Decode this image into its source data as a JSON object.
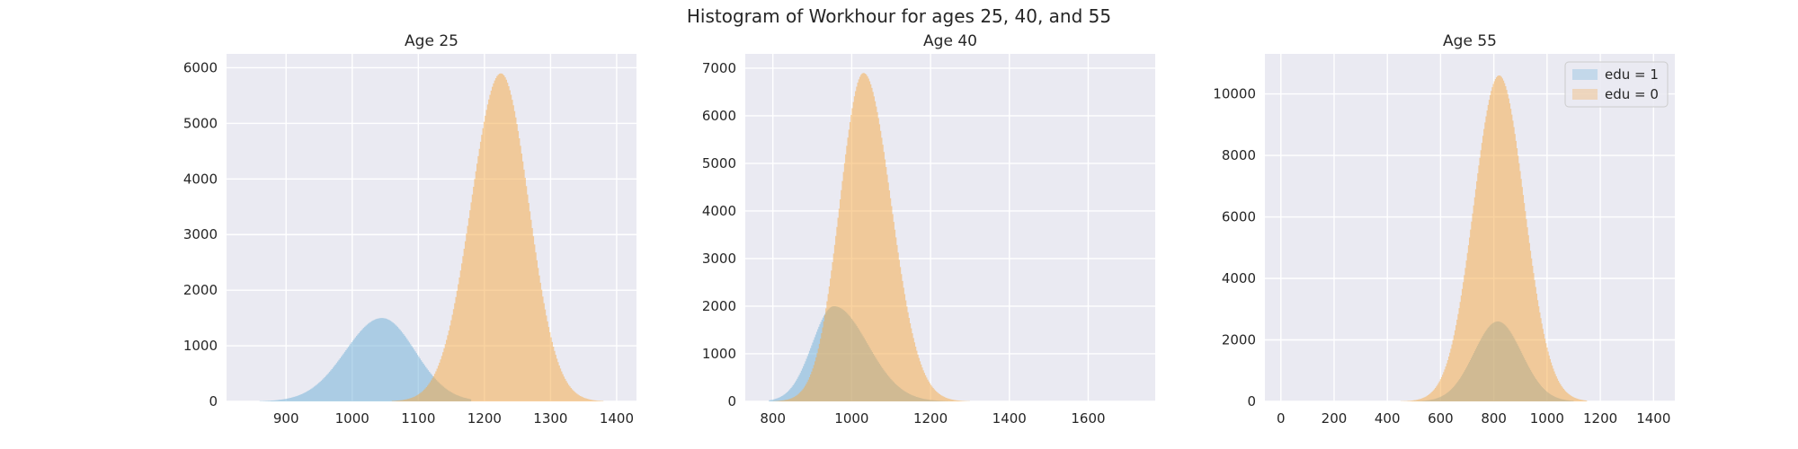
{
  "suptitle": "Histogram of Workhour for ages 25, 40, and 55",
  "colors": {
    "edu1": "#6baed6",
    "edu0": "#f5a742",
    "panel_bg": "#eaeaf2",
    "grid": "#ffffff",
    "text": "#262626"
  },
  "legend": {
    "placement": "upper right",
    "panel": 2
  },
  "chart_data": [
    {
      "type": "histogram",
      "title": "Age 25",
      "xlim": [
        810,
        1430
      ],
      "ylim": [
        0,
        6250
      ],
      "xticks": [
        900,
        1000,
        1100,
        1200,
        1300,
        1400
      ],
      "yticks": [
        0,
        1000,
        2000,
        3000,
        4000,
        5000,
        6000
      ],
      "grid": true,
      "series": [
        {
          "name": "edu = 1",
          "color": "edu1",
          "x_range": [
            860,
            1180
          ],
          "peak_x": 1045,
          "peak_y": 1500,
          "sigma_left": 55,
          "sigma_right": 50
        },
        {
          "name": "edu = 0",
          "color": "edu0",
          "x_range": [
            1060,
            1380
          ],
          "peak_x": 1225,
          "peak_y": 5900,
          "sigma_left": 45,
          "sigma_right": 42
        }
      ]
    },
    {
      "type": "histogram",
      "title": "Age 40",
      "xlim": [
        730,
        1770
      ],
      "ylim": [
        0,
        7300
      ],
      "xticks": [
        800,
        1000,
        1200,
        1400,
        1600
      ],
      "yticks": [
        0,
        1000,
        2000,
        3000,
        4000,
        5000,
        6000,
        7000
      ],
      "grid": true,
      "series": [
        {
          "name": "edu = 1",
          "color": "edu1",
          "x_range": [
            790,
            1260
          ],
          "peak_x": 955,
          "peak_y": 2000,
          "sigma_left": 55,
          "sigma_right": 85
        },
        {
          "name": "edu = 0",
          "color": "edu0",
          "x_range": [
            800,
            1300
          ],
          "peak_x": 1030,
          "peak_y": 6900,
          "sigma_left": 60,
          "sigma_right": 70
        }
      ]
    },
    {
      "type": "histogram",
      "title": "Age 55",
      "xlim": [
        -60,
        1480
      ],
      "ylim": [
        0,
        11300
      ],
      "xticks": [
        0,
        200,
        400,
        600,
        800,
        1000,
        1200,
        1400
      ],
      "yticks": [
        0,
        2000,
        4000,
        6000,
        8000,
        10000
      ],
      "grid": true,
      "series": [
        {
          "name": "edu = 1",
          "color": "edu1",
          "x_range": [
            500,
            1100
          ],
          "peak_x": 815,
          "peak_y": 2600,
          "sigma_left": 90,
          "sigma_right": 90
        },
        {
          "name": "edu = 0",
          "color": "edu0",
          "x_range": [
            450,
            1150
          ],
          "peak_x": 820,
          "peak_y": 10600,
          "sigma_left": 95,
          "sigma_right": 95
        }
      ]
    }
  ]
}
